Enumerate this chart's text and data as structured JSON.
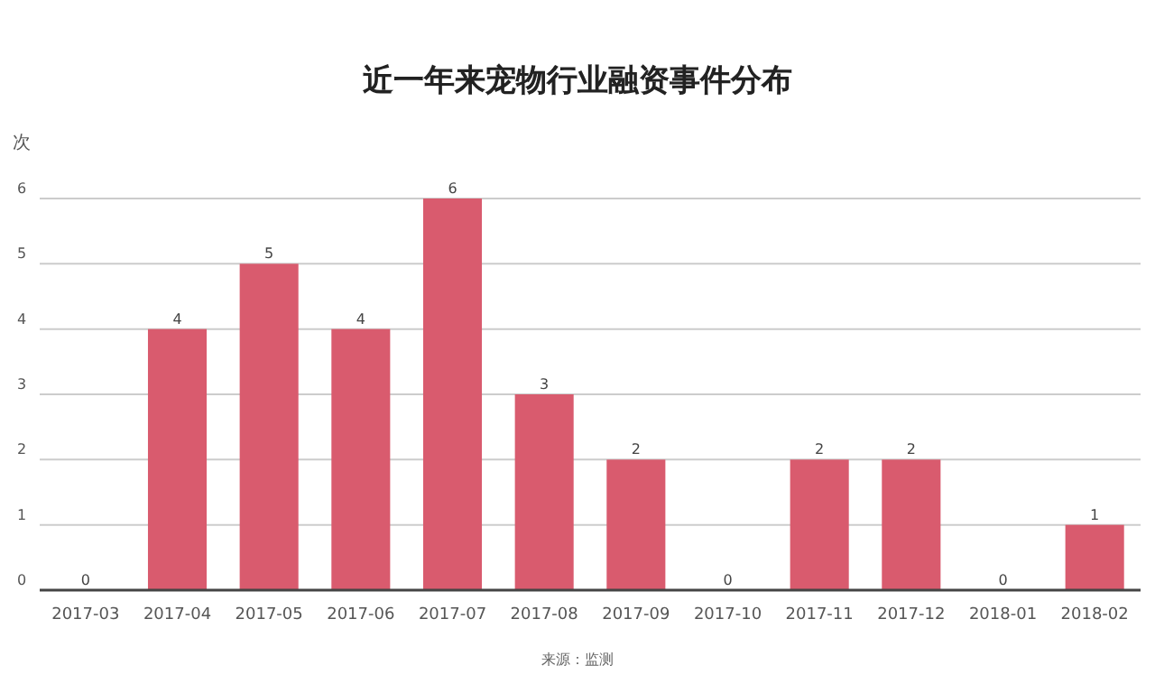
{
  "chart_data": {
    "type": "bar",
    "title": "近一年来宠物行业融资事件分布",
    "ylabel": "次",
    "categories": [
      "2017-03",
      "2017-04",
      "2017-05",
      "2017-06",
      "2017-07",
      "2017-08",
      "2017-09",
      "2017-10",
      "2017-11",
      "2017-12",
      "2018-01",
      "2018-02"
    ],
    "values": [
      0,
      4,
      5,
      4,
      6,
      3,
      2,
      0,
      2,
      2,
      0,
      1
    ],
    "color": "#d95b6e",
    "ylim": [
      0,
      6
    ],
    "yticks": [
      0,
      1,
      2,
      3,
      4,
      5,
      6
    ],
    "grid": "y",
    "data_labels": true,
    "annotations": [
      "来源：监测"
    ]
  }
}
